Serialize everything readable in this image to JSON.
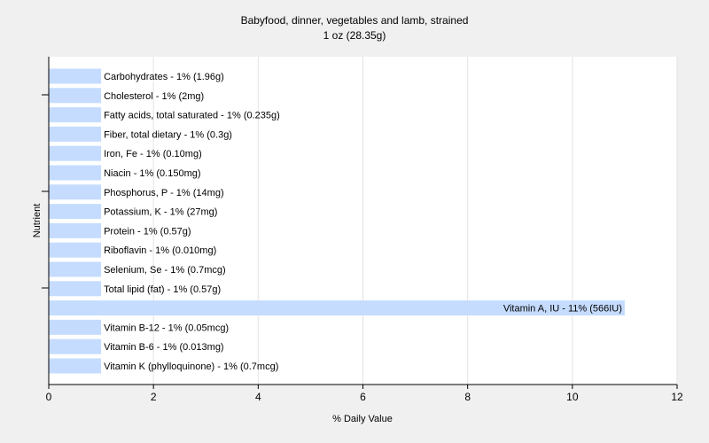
{
  "chart_data": {
    "type": "bar",
    "orientation": "horizontal",
    "title": "Babyfood, dinner, vegetables and lamb, strained",
    "subtitle": "1 oz (28.35g)",
    "xlabel": "% Daily Value",
    "ylabel": "Nutrient",
    "xlim": [
      0,
      12
    ],
    "xticks": [
      "0",
      "2",
      "4",
      "6",
      "8",
      "10",
      "12"
    ],
    "grid": "vertical",
    "bar_color": "#c5dcff",
    "categories": [
      "Carbohydrates",
      "Cholesterol",
      "Fatty acids, total saturated",
      "Fiber, total dietary",
      "Iron, Fe",
      "Niacin",
      "Phosphorus, P",
      "Potassium, K",
      "Protein",
      "Riboflavin",
      "Selenium, Se",
      "Total lipid (fat)",
      "Vitamin A, IU",
      "Vitamin B-12",
      "Vitamin B-6",
      "Vitamin K (phylloquinone)"
    ],
    "values": [
      1,
      1,
      1,
      1,
      1,
      1,
      1,
      1,
      1,
      1,
      1,
      1,
      11,
      1,
      1,
      1
    ],
    "labels": [
      "Carbohydrates - 1% (1.96g)",
      "Cholesterol - 1% (2mg)",
      "Fatty acids, total saturated - 1% (0.235g)",
      "Fiber, total dietary - 1% (0.3g)",
      "Iron, Fe - 1% (0.10mg)",
      "Niacin - 1% (0.150mg)",
      "Phosphorus, P - 1% (14mg)",
      "Potassium, K - 1% (27mg)",
      "Protein - 1% (0.57g)",
      "Riboflavin - 1% (0.010mg)",
      "Selenium, Se - 1% (0.7mcg)",
      "Total lipid (fat) - 1% (0.57g)",
      "Vitamin A, IU - 11% (566IU)",
      "Vitamin B-12 - 1% (0.05mcg)",
      "Vitamin B-6 - 1% (0.013mg)",
      "Vitamin K (phylloquinone) - 1% (0.7mcg)"
    ]
  }
}
